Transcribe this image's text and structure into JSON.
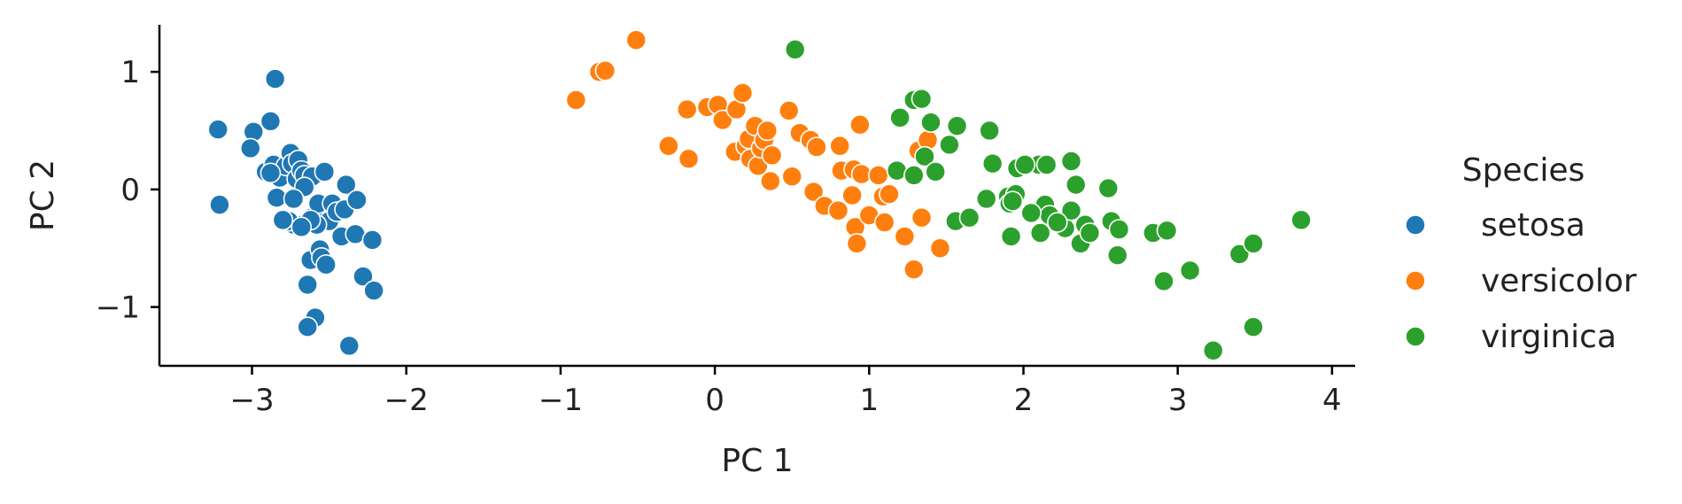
{
  "chart_data": {
    "type": "scatter",
    "xlabel": "PC 1",
    "ylabel": "PC 2",
    "xlim": [
      -3.6,
      4.15
    ],
    "ylim": [
      -1.5,
      1.4
    ],
    "xticks": [
      -3,
      -2,
      -1,
      0,
      1,
      2,
      3,
      4
    ],
    "xtick_labels": [
      "−3",
      "−2",
      "−1",
      "0",
      "1",
      "2",
      "3",
      "4"
    ],
    "yticks": [
      -1,
      0,
      1
    ],
    "ytick_labels": [
      "−1",
      "0",
      "1"
    ],
    "grid": false,
    "legend": {
      "title": "Species",
      "placement": "right"
    },
    "series": [
      {
        "name": "setosa",
        "color": "#1f77b4",
        "points": [
          [
            -3.22,
            0.51
          ],
          [
            -3.21,
            -0.13
          ],
          [
            -2.99,
            0.49
          ],
          [
            -3.01,
            0.35
          ],
          [
            -2.88,
            0.58
          ],
          [
            -2.85,
            0.94
          ],
          [
            -2.91,
            0.15
          ],
          [
            -2.86,
            0.21
          ],
          [
            -2.84,
            -0.07
          ],
          [
            -2.82,
            0.1
          ],
          [
            -2.78,
            0.2
          ],
          [
            -2.75,
            0.31
          ],
          [
            -2.74,
            0.22
          ],
          [
            -2.73,
            -0.3
          ],
          [
            -2.7,
            0.25
          ],
          [
            -2.71,
            0.09
          ],
          [
            -2.68,
            0.16
          ],
          [
            -2.67,
            -0.3
          ],
          [
            -2.66,
            0.12
          ],
          [
            -2.64,
            -0.81
          ],
          [
            -2.62,
            -0.6
          ],
          [
            -2.61,
            0.11
          ],
          [
            -2.6,
            -0.23
          ],
          [
            -2.59,
            -1.09
          ],
          [
            -2.57,
            -0.12
          ],
          [
            -2.56,
            -0.51
          ],
          [
            -2.55,
            -0.58
          ],
          [
            -2.53,
            0.15
          ],
          [
            -2.52,
            -0.64
          ],
          [
            -2.5,
            -0.27
          ],
          [
            -2.48,
            -0.12
          ],
          [
            -2.45,
            -0.19
          ],
          [
            -2.42,
            -0.4
          ],
          [
            -2.4,
            -0.17
          ],
          [
            -2.39,
            0.04
          ],
          [
            -2.37,
            -1.33
          ],
          [
            -2.33,
            -0.38
          ],
          [
            -2.32,
            -0.09
          ],
          [
            -2.28,
            -0.74
          ],
          [
            -2.22,
            -0.43
          ],
          [
            -2.21,
            -0.86
          ],
          [
            -2.64,
            -1.17
          ],
          [
            -2.76,
            -0.27
          ],
          [
            -2.8,
            -0.26
          ],
          [
            -2.66,
            0.02
          ],
          [
            -2.58,
            -0.3
          ],
          [
            -2.62,
            -0.26
          ],
          [
            -2.88,
            0.14
          ],
          [
            -2.68,
            -0.32
          ],
          [
            -2.73,
            -0.08
          ]
        ]
      },
      {
        "name": "versicolor",
        "color": "#ff7f0e",
        "points": [
          [
            -0.9,
            0.76
          ],
          [
            -0.75,
            1.0
          ],
          [
            -0.71,
            1.01
          ],
          [
            -0.51,
            1.27
          ],
          [
            -0.3,
            0.37
          ],
          [
            -0.18,
            0.68
          ],
          [
            -0.17,
            0.26
          ],
          [
            -0.05,
            0.7
          ],
          [
            0.02,
            0.72
          ],
          [
            0.05,
            0.59
          ],
          [
            0.13,
            0.32
          ],
          [
            0.14,
            0.68
          ],
          [
            0.18,
            0.82
          ],
          [
            0.2,
            0.37
          ],
          [
            0.22,
            0.43
          ],
          [
            0.23,
            0.26
          ],
          [
            0.26,
            0.54
          ],
          [
            0.28,
            0.2
          ],
          [
            0.3,
            0.35
          ],
          [
            0.32,
            0.42
          ],
          [
            0.34,
            0.5
          ],
          [
            0.36,
            0.07
          ],
          [
            0.37,
            0.29
          ],
          [
            0.48,
            0.67
          ],
          [
            0.5,
            0.11
          ],
          [
            0.55,
            0.48
          ],
          [
            0.62,
            0.42
          ],
          [
            0.64,
            -0.02
          ],
          [
            0.66,
            0.36
          ],
          [
            0.71,
            -0.14
          ],
          [
            0.8,
            -0.18
          ],
          [
            0.81,
            0.37
          ],
          [
            0.82,
            0.16
          ],
          [
            0.89,
            -0.05
          ],
          [
            0.9,
            0.17
          ],
          [
            0.91,
            -0.32
          ],
          [
            0.92,
            -0.46
          ],
          [
            0.94,
            0.55
          ],
          [
            0.95,
            0.13
          ],
          [
            1.0,
            -0.22
          ],
          [
            1.06,
            0.12
          ],
          [
            1.09,
            -0.06
          ],
          [
            1.1,
            -0.28
          ],
          [
            1.13,
            -0.04
          ],
          [
            1.23,
            -0.4
          ],
          [
            1.29,
            -0.68
          ],
          [
            1.32,
            0.33
          ],
          [
            1.34,
            -0.24
          ],
          [
            1.38,
            0.42
          ],
          [
            1.46,
            -0.5
          ]
        ]
      },
      {
        "name": "virginica",
        "color": "#2ca02c",
        "points": [
          [
            0.52,
            1.19
          ],
          [
            1.18,
            0.16
          ],
          [
            1.2,
            0.61
          ],
          [
            1.29,
            0.76
          ],
          [
            1.34,
            0.77
          ],
          [
            1.29,
            0.12
          ],
          [
            1.36,
            0.28
          ],
          [
            1.4,
            0.57
          ],
          [
            1.43,
            0.15
          ],
          [
            1.52,
            0.38
          ],
          [
            1.57,
            0.54
          ],
          [
            1.56,
            -0.27
          ],
          [
            1.65,
            -0.24
          ],
          [
            1.76,
            -0.08
          ],
          [
            1.78,
            0.5
          ],
          [
            1.8,
            0.22
          ],
          [
            1.9,
            -0.06
          ],
          [
            1.91,
            -0.12
          ],
          [
            1.92,
            -0.4
          ],
          [
            1.95,
            -0.04
          ],
          [
            1.96,
            0.18
          ],
          [
            2.1,
            0.21
          ],
          [
            2.11,
            -0.37
          ],
          [
            2.14,
            -0.13
          ],
          [
            2.15,
            0.21
          ],
          [
            2.17,
            -0.22
          ],
          [
            2.27,
            -0.33
          ],
          [
            2.31,
            -0.18
          ],
          [
            2.31,
            0.24
          ],
          [
            2.34,
            0.04
          ],
          [
            2.37,
            -0.46
          ],
          [
            2.4,
            -0.3
          ],
          [
            2.43,
            -0.37
          ],
          [
            2.55,
            0.01
          ],
          [
            2.57,
            -0.27
          ],
          [
            2.61,
            -0.56
          ],
          [
            2.62,
            -0.34
          ],
          [
            2.84,
            -0.37
          ],
          [
            2.93,
            -0.35
          ],
          [
            2.91,
            -0.78
          ],
          [
            3.08,
            -0.69
          ],
          [
            3.23,
            -1.37
          ],
          [
            3.4,
            -0.55
          ],
          [
            3.49,
            -0.46
          ],
          [
            3.49,
            -1.17
          ],
          [
            3.8,
            -0.26
          ],
          [
            2.22,
            -0.28
          ],
          [
            1.93,
            -0.1
          ],
          [
            2.05,
            -0.2
          ],
          [
            2.01,
            0.21
          ]
        ]
      }
    ]
  }
}
